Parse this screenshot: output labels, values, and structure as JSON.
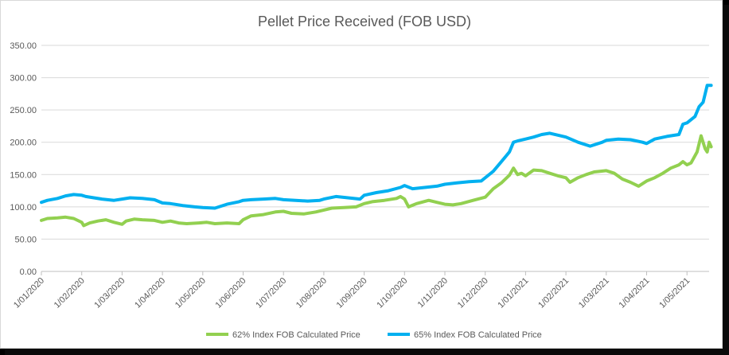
{
  "chart_data": {
    "type": "line",
    "title": "Pellet Price Received (FOB USD)",
    "xlabel": "",
    "ylabel": "",
    "ylim": [
      0,
      350
    ],
    "yticks": [
      "0.00",
      "50.00",
      "100.00",
      "150.00",
      "200.00",
      "250.00",
      "300.00",
      "350.00"
    ],
    "ytick_values": [
      0,
      50,
      100,
      150,
      200,
      250,
      300,
      350
    ],
    "xlim": [
      0,
      16.6
    ],
    "xticks": [
      "1/01/2020",
      "1/02/2020",
      "1/03/2020",
      "1/04/2020",
      "1/05/2020",
      "1/06/2020",
      "1/07/2020",
      "1/08/2020",
      "1/09/2020",
      "1/10/2020",
      "1/11/2020",
      "1/12/2020",
      "1/01/2021",
      "1/02/2021",
      "1/03/2021",
      "1/04/2021",
      "1/05/2021"
    ],
    "x_unit": "months since 1/01/2020",
    "grid": true,
    "legend_position": "bottom",
    "series": [
      {
        "name": "62% Index FOB Calculated Price",
        "color": "#92d050",
        "x": [
          0,
          0.15,
          0.4,
          0.6,
          0.8,
          1.0,
          1.05,
          1.2,
          1.4,
          1.6,
          1.8,
          2.0,
          2.1,
          2.3,
          2.5,
          2.8,
          3.0,
          3.2,
          3.4,
          3.6,
          3.9,
          4.1,
          4.3,
          4.6,
          4.9,
          5.0,
          5.2,
          5.5,
          5.8,
          6.0,
          6.2,
          6.5,
          6.8,
          7.0,
          7.2,
          7.5,
          7.8,
          8.0,
          8.2,
          8.5,
          8.8,
          8.9,
          9.0,
          9.1,
          9.3,
          9.6,
          9.8,
          10.0,
          10.2,
          10.4,
          10.7,
          11.0,
          11.2,
          11.4,
          11.6,
          11.7,
          11.8,
          11.9,
          12.0,
          12.2,
          12.4,
          12.6,
          12.8,
          13.0,
          13.1,
          13.3,
          13.5,
          13.7,
          14.0,
          14.2,
          14.4,
          14.6,
          14.8,
          15.0,
          15.2,
          15.4,
          15.6,
          15.8,
          15.9,
          16.0,
          16.1,
          16.25,
          16.35,
          16.45,
          16.5,
          16.55,
          16.6
        ],
        "values": [
          79,
          82,
          83,
          84,
          82,
          76,
          71,
          75,
          78,
          80,
          76,
          73,
          78,
          81,
          80,
          79,
          76,
          78,
          75,
          74,
          75,
          76,
          74,
          75,
          74,
          80,
          86,
          88,
          92,
          93,
          90,
          89,
          92,
          95,
          98,
          99,
          100,
          105,
          108,
          110,
          113,
          116,
          112,
          100,
          105,
          110,
          107,
          104,
          103,
          105,
          110,
          115,
          128,
          137,
          149,
          160,
          150,
          152,
          148,
          157,
          156,
          152,
          148,
          145,
          138,
          145,
          150,
          154,
          156,
          152,
          143,
          138,
          132,
          140,
          145,
          152,
          160,
          165,
          170,
          165,
          168,
          185,
          210,
          190,
          185,
          200,
          193
        ]
      },
      {
        "name": "65% Index FOB Calculated Price",
        "color": "#00b0f0",
        "x": [
          0,
          0.15,
          0.4,
          0.6,
          0.8,
          1.0,
          1.1,
          1.3,
          1.5,
          1.8,
          2.0,
          2.2,
          2.5,
          2.8,
          3.0,
          3.2,
          3.5,
          3.8,
          4.0,
          4.3,
          4.6,
          4.9,
          5.0,
          5.2,
          5.5,
          5.8,
          6.0,
          6.3,
          6.6,
          6.9,
          7.0,
          7.3,
          7.6,
          7.9,
          8.0,
          8.3,
          8.6,
          8.9,
          9.0,
          9.2,
          9.5,
          9.8,
          10.0,
          10.3,
          10.6,
          10.9,
          11.0,
          11.2,
          11.4,
          11.6,
          11.7,
          11.8,
          12.0,
          12.2,
          12.4,
          12.6,
          12.8,
          13.0,
          13.3,
          13.6,
          13.9,
          14.0,
          14.3,
          14.6,
          14.9,
          15.0,
          15.2,
          15.5,
          15.8,
          15.9,
          16.0,
          16.2,
          16.3,
          16.4,
          16.5,
          16.6
        ],
        "values": [
          107,
          110,
          113,
          117,
          119,
          118,
          116,
          114,
          112,
          110,
          112,
          114,
          113,
          111,
          106,
          105,
          102,
          100,
          99,
          98,
          104,
          108,
          110,
          111,
          112,
          113,
          111,
          110,
          109,
          110,
          112,
          116,
          114,
          112,
          118,
          122,
          125,
          130,
          133,
          128,
          130,
          132,
          135,
          137,
          139,
          140,
          145,
          155,
          170,
          185,
          200,
          202,
          205,
          208,
          212,
          214,
          211,
          208,
          200,
          194,
          200,
          203,
          205,
          204,
          200,
          198,
          205,
          209,
          212,
          228,
          230,
          240,
          255,
          262,
          288,
          288
        ]
      }
    ]
  }
}
